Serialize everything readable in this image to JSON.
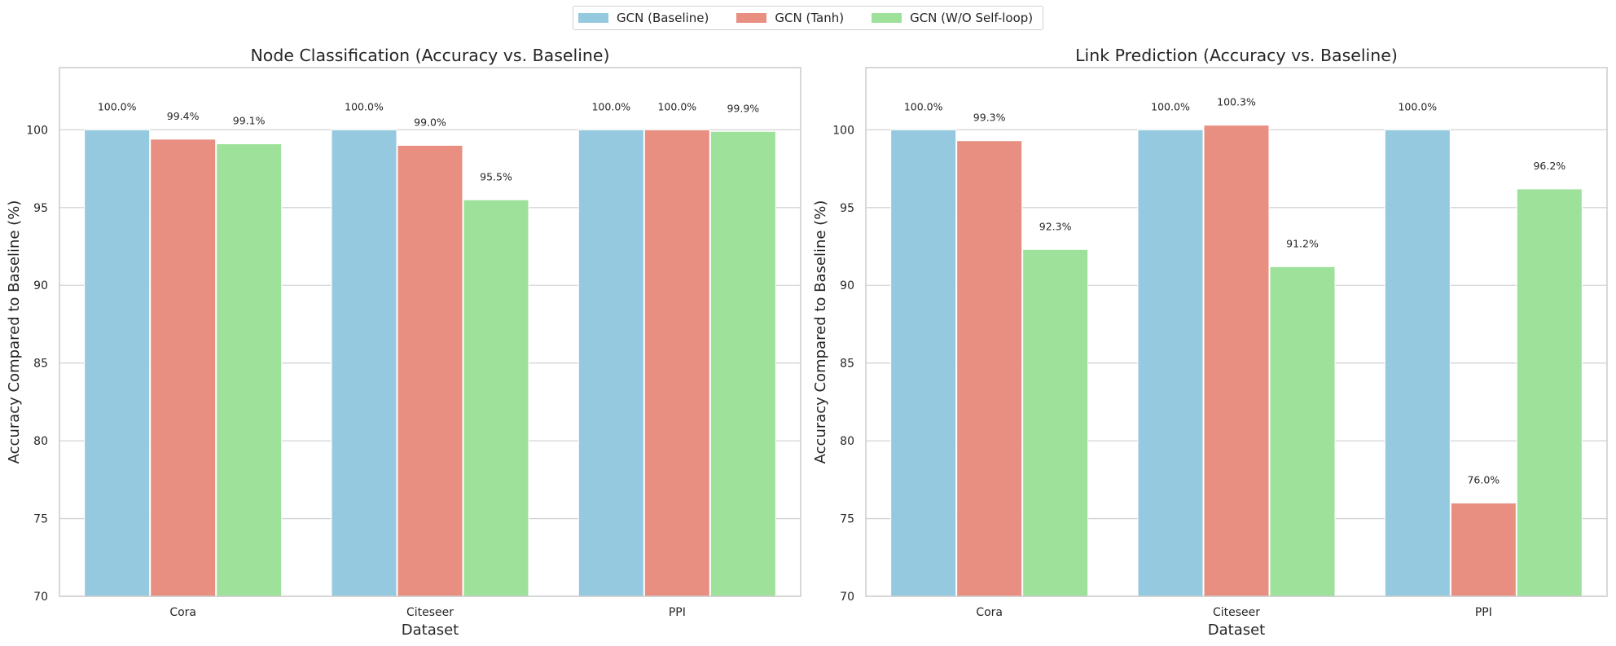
{
  "legend": {
    "items": [
      {
        "label": "GCN (Baseline)",
        "color": "#95c9df"
      },
      {
        "label": "GCN (Tanh)",
        "color": "#e88f82"
      },
      {
        "label": "GCN (W/O Self-loop)",
        "color": "#9de19a"
      }
    ]
  },
  "chart_data": [
    {
      "type": "bar",
      "title": "Node Classification (Accuracy vs. Baseline)",
      "xlabel": "Dataset",
      "ylabel": "Accuracy Compared to Baseline (%)",
      "categories": [
        "Cora",
        "Citeseer",
        "PPI"
      ],
      "ylim": [
        70,
        104
      ],
      "yticks": [
        70,
        75,
        80,
        85,
        90,
        95,
        100
      ],
      "grid": true,
      "series": [
        {
          "name": "GCN (Baseline)",
          "color": "#95c9df",
          "values": [
            100.0,
            100.0,
            100.0
          ],
          "labels": [
            "100.0%",
            "100.0%",
            "100.0%"
          ]
        },
        {
          "name": "GCN (Tanh)",
          "color": "#e88f82",
          "values": [
            99.4,
            99.0,
            100.0
          ],
          "labels": [
            "99.4%",
            "99.0%",
            "100.0%"
          ]
        },
        {
          "name": "GCN (W/O Self-loop)",
          "color": "#9de19a",
          "values": [
            99.1,
            95.5,
            99.9
          ],
          "labels": [
            "99.1%",
            "95.5%",
            "99.9%"
          ]
        }
      ]
    },
    {
      "type": "bar",
      "title": "Link Prediction (Accuracy vs. Baseline)",
      "xlabel": "Dataset",
      "ylabel": "Accuracy Compared to Baseline (%)",
      "categories": [
        "Cora",
        "Citeseer",
        "PPI"
      ],
      "ylim": [
        70,
        104
      ],
      "yticks": [
        70,
        75,
        80,
        85,
        90,
        95,
        100
      ],
      "grid": true,
      "series": [
        {
          "name": "GCN (Baseline)",
          "color": "#95c9df",
          "values": [
            100.0,
            100.0,
            100.0
          ],
          "labels": [
            "100.0%",
            "100.0%",
            "100.0%"
          ]
        },
        {
          "name": "GCN (Tanh)",
          "color": "#e88f82",
          "values": [
            99.3,
            100.3,
            76.0
          ],
          "labels": [
            "99.3%",
            "100.3%",
            "76.0%"
          ]
        },
        {
          "name": "GCN (W/O Self-loop)",
          "color": "#9de19a",
          "values": [
            92.3,
            91.2,
            96.2
          ],
          "labels": [
            "92.3%",
            "91.2%",
            "96.2%"
          ]
        }
      ]
    }
  ]
}
